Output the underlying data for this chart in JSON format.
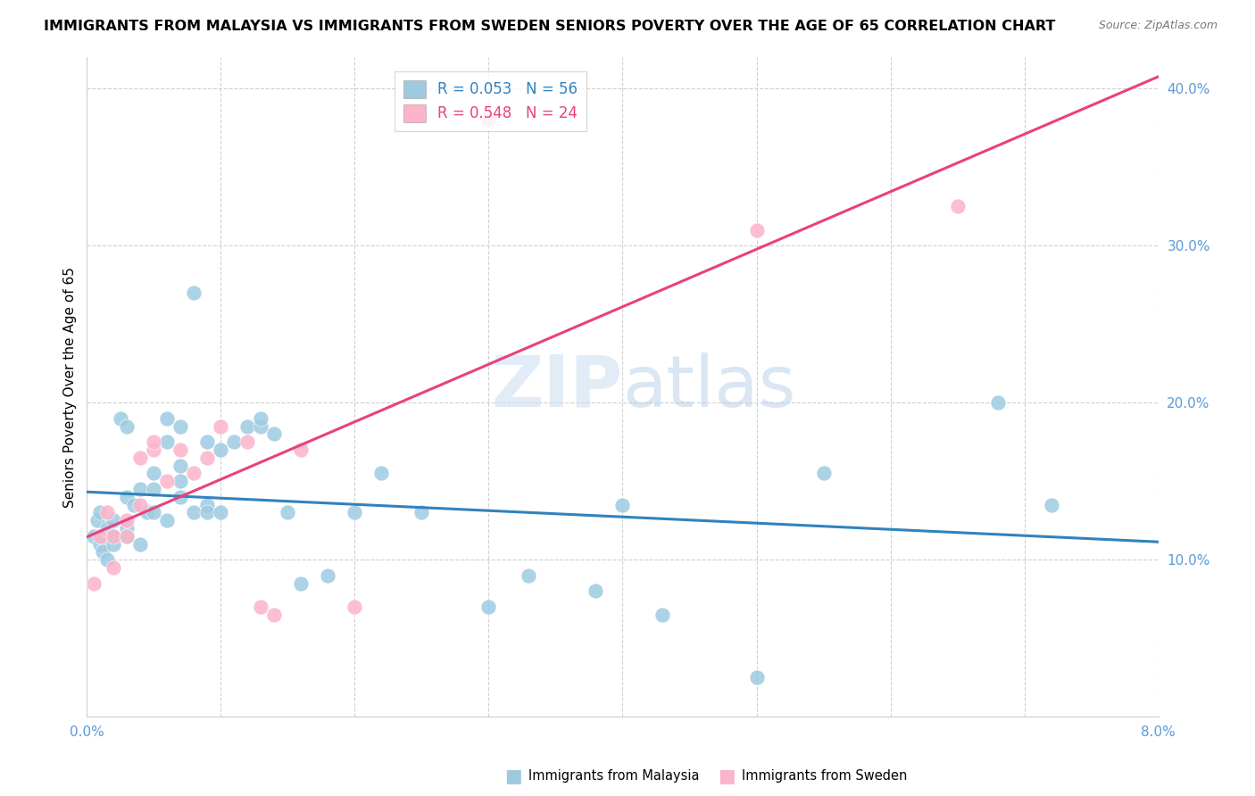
{
  "title": "IMMIGRANTS FROM MALAYSIA VS IMMIGRANTS FROM SWEDEN SENIORS POVERTY OVER THE AGE OF 65 CORRELATION CHART",
  "source": "Source: ZipAtlas.com",
  "ylabel": "Seniors Poverty Over the Age of 65",
  "xlim": [
    0.0,
    0.08
  ],
  "ylim": [
    0.0,
    0.42
  ],
  "xticks": [
    0.0,
    0.01,
    0.02,
    0.03,
    0.04,
    0.05,
    0.06,
    0.07,
    0.08
  ],
  "xtick_labels": [
    "0.0%",
    "",
    "",
    "",
    "",
    "",
    "",
    "",
    "8.0%"
  ],
  "yticks": [
    0.0,
    0.1,
    0.2,
    0.3,
    0.4
  ],
  "ytick_labels": [
    "",
    "10.0%",
    "20.0%",
    "30.0%",
    "40.0%"
  ],
  "watermark_zip": "ZIP",
  "watermark_atlas": "atlas",
  "color_malaysia": "#9ecae1",
  "color_sweden": "#fbb4c9",
  "trendline_malaysia_color": "#3182bd",
  "trendline_sweden_color": "#e8417e",
  "malaysia_x": [
    0.0005,
    0.0008,
    0.001,
    0.001,
    0.0012,
    0.0015,
    0.0015,
    0.002,
    0.002,
    0.002,
    0.0025,
    0.003,
    0.003,
    0.003,
    0.003,
    0.0035,
    0.004,
    0.004,
    0.0045,
    0.005,
    0.005,
    0.005,
    0.006,
    0.006,
    0.006,
    0.007,
    0.007,
    0.007,
    0.007,
    0.008,
    0.008,
    0.009,
    0.009,
    0.009,
    0.01,
    0.01,
    0.011,
    0.012,
    0.013,
    0.013,
    0.014,
    0.015,
    0.016,
    0.018,
    0.02,
    0.022,
    0.025,
    0.03,
    0.033,
    0.038,
    0.04,
    0.043,
    0.05,
    0.055,
    0.068,
    0.072
  ],
  "malaysia_y": [
    0.115,
    0.125,
    0.11,
    0.13,
    0.105,
    0.12,
    0.1,
    0.125,
    0.115,
    0.11,
    0.19,
    0.14,
    0.12,
    0.115,
    0.185,
    0.135,
    0.145,
    0.11,
    0.13,
    0.155,
    0.13,
    0.145,
    0.175,
    0.19,
    0.125,
    0.16,
    0.15,
    0.14,
    0.185,
    0.27,
    0.13,
    0.175,
    0.135,
    0.13,
    0.17,
    0.13,
    0.175,
    0.185,
    0.185,
    0.19,
    0.18,
    0.13,
    0.085,
    0.09,
    0.13,
    0.155,
    0.13,
    0.07,
    0.09,
    0.08,
    0.135,
    0.065,
    0.025,
    0.155,
    0.2,
    0.135
  ],
  "sweden_x": [
    0.0005,
    0.001,
    0.0015,
    0.002,
    0.002,
    0.003,
    0.003,
    0.004,
    0.004,
    0.005,
    0.005,
    0.006,
    0.007,
    0.008,
    0.009,
    0.01,
    0.012,
    0.013,
    0.014,
    0.016,
    0.02,
    0.03,
    0.05,
    0.065
  ],
  "sweden_y": [
    0.085,
    0.115,
    0.13,
    0.115,
    0.095,
    0.115,
    0.125,
    0.135,
    0.165,
    0.17,
    0.175,
    0.15,
    0.17,
    0.155,
    0.165,
    0.185,
    0.175,
    0.07,
    0.065,
    0.17,
    0.07,
    0.38,
    0.31,
    0.325
  ],
  "background_color": "#ffffff",
  "grid_color": "#d0d0d0",
  "title_fontsize": 11.5,
  "source_fontsize": 9,
  "axis_label_fontsize": 11,
  "tick_fontsize": 11,
  "tick_color": "#5b9bd5",
  "legend_fontsize": 12
}
